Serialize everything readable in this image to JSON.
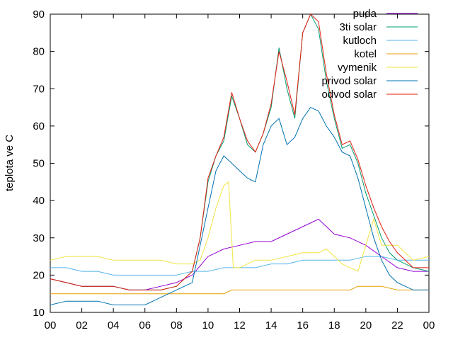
{
  "chart_data": {
    "type": "line",
    "title": "",
    "xlabel": "",
    "ylabel": "teplota ve C",
    "xlim": [
      0,
      24
    ],
    "ylim": [
      10,
      90
    ],
    "xticks": [
      "00",
      "02",
      "04",
      "06",
      "08",
      "10",
      "12",
      "14",
      "16",
      "18",
      "20",
      "22",
      "00"
    ],
    "yticks": [
      "10",
      "20",
      "30",
      "40",
      "50",
      "60",
      "70",
      "80",
      "90"
    ],
    "grid": false,
    "legend_position": "top-right",
    "series": [
      {
        "name": "puda",
        "color": "#9400d3",
        "x": [
          0,
          1,
          2,
          3,
          4,
          5,
          6,
          7,
          8,
          9,
          10,
          11,
          12,
          13,
          14,
          15,
          16,
          17,
          18,
          19,
          20,
          21,
          22,
          23,
          24
        ],
        "y": [
          19,
          18,
          17,
          17,
          17,
          16,
          16,
          17,
          18,
          20,
          25,
          27,
          28,
          29,
          29,
          31,
          33,
          35,
          31,
          30,
          28,
          25,
          22,
          21,
          21
        ]
      },
      {
        "name": "3ti solar",
        "color": "#009e73",
        "x": [
          0,
          1,
          2,
          3,
          4,
          5,
          6,
          7,
          8,
          9,
          9.5,
          10,
          10.5,
          11,
          11.5,
          12,
          12.5,
          13,
          13.5,
          14,
          14.5,
          15,
          15.5,
          16,
          16.5,
          17,
          17.5,
          18,
          18.5,
          19,
          19.5,
          20,
          20.5,
          21,
          21.5,
          22,
          22.5,
          23,
          24
        ],
        "y": [
          19,
          18,
          17,
          17,
          17,
          16,
          16,
          16,
          17,
          21,
          30,
          45,
          52,
          56,
          68,
          62,
          55,
          53,
          58,
          65,
          81,
          70,
          62,
          85,
          90,
          86,
          72,
          62,
          54,
          55,
          50,
          42,
          36,
          30,
          26,
          24,
          23,
          22,
          21
        ]
      },
      {
        "name": "kutloch",
        "color": "#56b4e9",
        "x": [
          0,
          1,
          2,
          3,
          4,
          5,
          6,
          7,
          8,
          9,
          10,
          11,
          12,
          13,
          14,
          15,
          16,
          17,
          18,
          19,
          20,
          21,
          22,
          23,
          24
        ],
        "y": [
          22,
          22,
          21,
          21,
          20,
          20,
          20,
          20,
          20,
          21,
          21,
          22,
          22,
          22,
          23,
          23,
          24,
          24,
          24,
          24,
          25,
          25,
          24,
          24,
          24
        ]
      },
      {
        "name": "kotel",
        "color": "#e69f00",
        "x": [
          0,
          1,
          2,
          3,
          4,
          5,
          6,
          7,
          8,
          9,
          10,
          11,
          11.5,
          12,
          13,
          14,
          15,
          16,
          17,
          18,
          19,
          19.5,
          20,
          21,
          22,
          23,
          24
        ],
        "y": [
          15,
          15,
          15,
          15,
          15,
          15,
          15,
          15,
          15,
          15,
          15,
          15,
          16,
          16,
          16,
          16,
          16,
          16,
          16,
          16,
          16,
          17,
          17,
          17,
          16,
          16,
          16
        ]
      },
      {
        "name": "vymenik",
        "color": "#f0e442",
        "x": [
          0,
          1,
          2,
          3,
          4,
          5,
          6,
          7,
          8,
          9,
          9.5,
          10,
          10.5,
          11,
          11.3,
          11.6,
          12,
          13,
          14,
          15,
          16,
          17,
          17.5,
          18,
          18.5,
          19,
          19.5,
          20,
          20.5,
          21,
          22,
          23,
          24
        ],
        "y": [
          24,
          25,
          25,
          25,
          24,
          24,
          24,
          24,
          23,
          23,
          24,
          30,
          38,
          44,
          45,
          22,
          22,
          24,
          24,
          25,
          26,
          26,
          27,
          25,
          23,
          22,
          21,
          28,
          35,
          28,
          28,
          24,
          25
        ]
      },
      {
        "name": "privod solar",
        "color": "#0072b2",
        "x": [
          0,
          1,
          2,
          3,
          4,
          5,
          6,
          7,
          8,
          9,
          9.5,
          10,
          10.5,
          11,
          11.5,
          12,
          12.5,
          13,
          13.5,
          14,
          14.5,
          15,
          15.5,
          16,
          16.5,
          17,
          17.5,
          18,
          18.5,
          19,
          19.5,
          20,
          20.5,
          21,
          21.5,
          22,
          22.5,
          23,
          24
        ],
        "y": [
          12,
          13,
          13,
          13,
          12,
          12,
          12,
          14,
          16,
          18,
          28,
          38,
          48,
          52,
          50,
          48,
          46,
          45,
          55,
          60,
          62,
          55,
          57,
          62,
          65,
          64,
          60,
          57,
          53,
          52,
          46,
          38,
          30,
          24,
          20,
          18,
          17,
          16,
          16
        ]
      },
      {
        "name": "odvod solar",
        "color": "#e51e10",
        "x": [
          0,
          1,
          2,
          3,
          4,
          5,
          6,
          7,
          8,
          9,
          9.5,
          10,
          10.5,
          11,
          11.5,
          12,
          12.5,
          13,
          13.5,
          14,
          14.5,
          15,
          15.5,
          16,
          16.5,
          17,
          17.5,
          18,
          18.5,
          19,
          19.5,
          20,
          20.5,
          21,
          21.5,
          22,
          22.5,
          23,
          24
        ],
        "y": [
          19,
          18,
          17,
          17,
          17,
          16,
          16,
          16,
          17,
          21,
          30,
          46,
          52,
          57,
          69,
          62,
          56,
          53,
          58,
          66,
          80,
          72,
          63,
          85,
          90,
          88,
          74,
          63,
          55,
          56,
          51,
          44,
          38,
          33,
          29,
          26,
          24,
          22,
          22
        ]
      }
    ]
  }
}
